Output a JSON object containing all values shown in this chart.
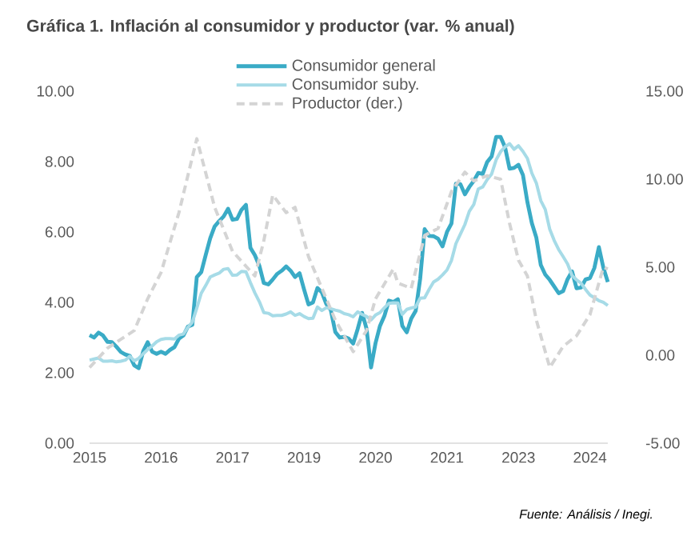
{
  "chart_data": {
    "type": "line",
    "title": "Gráfica 1. Inflación al consumidor y productor (var. % anual)",
    "annotations": [
      "Fuente: Análisis / Inegi."
    ],
    "x": [
      "2015-01",
      "2015-02",
      "2015-03",
      "2015-04",
      "2015-05",
      "2015-06",
      "2015-07",
      "2015-08",
      "2015-09",
      "2015-10",
      "2015-11",
      "2015-12",
      "2016-01",
      "2016-02",
      "2016-03",
      "2016-04",
      "2016-05",
      "2016-06",
      "2016-07",
      "2016-08",
      "2016-09",
      "2016-10",
      "2016-11",
      "2016-12",
      "2017-01",
      "2017-02",
      "2017-03",
      "2017-04",
      "2017-05",
      "2017-06",
      "2017-07",
      "2017-08",
      "2017-09",
      "2017-10",
      "2017-11",
      "2017-12",
      "2018-01",
      "2018-02",
      "2018-03",
      "2018-04",
      "2018-05",
      "2018-06",
      "2018-07",
      "2018-08",
      "2018-09",
      "2018-10",
      "2018-11",
      "2018-12",
      "2019-01",
      "2019-02",
      "2019-03",
      "2019-04",
      "2019-05",
      "2019-06",
      "2019-07",
      "2019-08",
      "2019-09",
      "2019-10",
      "2019-11",
      "2019-12",
      "2020-01",
      "2020-02",
      "2020-03",
      "2020-04",
      "2020-05",
      "2020-06",
      "2020-07",
      "2020-08",
      "2020-09",
      "2020-10",
      "2020-11",
      "2020-12",
      "2021-01",
      "2021-02",
      "2021-03",
      "2021-04",
      "2021-05",
      "2021-06",
      "2021-07",
      "2021-08",
      "2021-09",
      "2021-10",
      "2021-11",
      "2021-12",
      "2022-01",
      "2022-02",
      "2022-03",
      "2022-04",
      "2022-05",
      "2022-06",
      "2022-07",
      "2022-08",
      "2022-09",
      "2022-10",
      "2022-11",
      "2022-12",
      "2023-01",
      "2023-02",
      "2023-03",
      "2023-04",
      "2023-05",
      "2023-06",
      "2023-07",
      "2023-08",
      "2023-09",
      "2023-10",
      "2023-11",
      "2023-12",
      "2024-01",
      "2024-02",
      "2024-03",
      "2024-04",
      "2024-05",
      "2024-06",
      "2024-07",
      "2024-08",
      "2024-09"
    ],
    "series": [
      {
        "name": "Consumidor general",
        "color": "#3aabc6",
        "values": [
          3.07,
          3.0,
          3.14,
          3.06,
          2.88,
          2.87,
          2.74,
          2.59,
          2.52,
          2.48,
          2.21,
          2.13,
          2.61,
          2.87,
          2.6,
          2.54,
          2.6,
          2.54,
          2.65,
          2.73,
          2.97,
          3.06,
          3.31,
          3.36,
          4.72,
          4.86,
          5.35,
          5.82,
          6.16,
          6.31,
          6.44,
          6.66,
          6.35,
          6.37,
          6.63,
          6.77,
          5.55,
          5.34,
          5.04,
          4.55,
          4.51,
          4.65,
          4.81,
          4.9,
          5.02,
          4.9,
          4.72,
          4.83,
          4.37,
          3.94,
          4.0,
          4.41,
          4.28,
          3.95,
          3.78,
          3.16,
          3.0,
          3.02,
          2.97,
          2.83,
          3.24,
          3.7,
          3.25,
          2.15,
          2.84,
          3.33,
          3.62,
          4.05,
          4.01,
          4.09,
          3.33,
          3.15,
          3.54,
          3.76,
          4.67,
          6.08,
          5.89,
          5.88,
          5.81,
          5.59,
          6.0,
          6.24,
          7.37,
          7.36,
          7.07,
          7.28,
          7.45,
          7.68,
          7.65,
          7.99,
          8.15,
          8.7,
          8.7,
          8.41,
          7.8,
          7.82,
          7.91,
          7.62,
          6.85,
          6.25,
          5.84,
          5.06,
          4.79,
          4.64,
          4.45,
          4.26,
          4.32,
          4.66,
          4.88,
          4.4,
          4.42,
          4.65,
          4.69,
          4.98,
          5.57,
          4.99,
          4.58
        ]
      },
      {
        "name": "Consumidor suby.",
        "color": "#a6dbe7",
        "values": [
          2.36,
          2.39,
          2.42,
          2.33,
          2.33,
          2.34,
          2.31,
          2.33,
          2.36,
          2.47,
          2.34,
          2.41,
          2.54,
          2.66,
          2.76,
          2.88,
          2.95,
          2.97,
          2.97,
          2.96,
          3.07,
          3.1,
          3.29,
          3.44,
          3.84,
          4.26,
          4.48,
          4.72,
          4.78,
          4.83,
          4.94,
          4.96,
          4.77,
          4.78,
          4.88,
          4.87,
          4.56,
          4.27,
          4.02,
          3.71,
          3.69,
          3.62,
          3.63,
          3.63,
          3.67,
          3.73,
          3.63,
          3.68,
          3.6,
          3.54,
          3.55,
          3.87,
          3.77,
          3.85,
          3.82,
          3.78,
          3.75,
          3.68,
          3.65,
          3.59,
          3.73,
          3.66,
          3.6,
          3.5,
          3.64,
          3.71,
          3.85,
          3.97,
          3.99,
          3.98,
          3.66,
          3.8,
          3.84,
          3.87,
          4.12,
          4.13,
          4.37,
          4.58,
          4.66,
          4.78,
          4.92,
          5.19,
          5.67,
          5.94,
          6.21,
          6.59,
          6.78,
          7.22,
          7.28,
          7.49,
          7.65,
          8.05,
          8.28,
          8.42,
          8.51,
          8.35,
          8.45,
          8.29,
          8.09,
          7.67,
          7.39,
          6.89,
          6.64,
          6.08,
          5.76,
          5.5,
          5.3,
          5.09,
          4.76,
          4.64,
          4.55,
          4.37,
          4.21,
          4.13,
          4.05,
          4.0,
          3.91
        ]
      },
      {
        "name": "Productor (der.)",
        "color": "#d4d4d4",
        "line_style": "dashed",
        "axis": "y2",
        "x": [
          "2015-01",
          "2015-05",
          "2015-11",
          "2016-02",
          "2016-05",
          "2016-09",
          "2017-01",
          "2017-05",
          "2017-09",
          "2018-02",
          "2018-04",
          "2018-06",
          "2018-09",
          "2018-11",
          "2019-02",
          "2019-05",
          "2019-08",
          "2019-12",
          "2020-03",
          "2020-05",
          "2020-09",
          "2020-10",
          "2021-01",
          "2021-04",
          "2021-07",
          "2021-10",
          "2022-01",
          "2022-03",
          "2022-06",
          "2022-09",
          "2022-11",
          "2023-01",
          "2023-03",
          "2023-05",
          "2023-08",
          "2023-11",
          "2024-02",
          "2024-05",
          "2024-08",
          "2024-09"
        ],
        "values": [
          -0.7,
          0.4,
          1.4,
          3.2,
          4.7,
          8.1,
          12.3,
          8.4,
          5.9,
          4.5,
          6.5,
          9.1,
          8.1,
          8.4,
          5.6,
          3.8,
          2.0,
          0.2,
          1.4,
          3.2,
          4.9,
          4.1,
          3.8,
          6.8,
          7.2,
          9.3,
          10.4,
          9.9,
          10.2,
          10.0,
          7.5,
          5.4,
          4.5,
          2.0,
          -0.7,
          0.5,
          1.1,
          2.3,
          5.0,
          4.9
        ]
      }
    ],
    "xlim": [
      "2015-01",
      "2024-09"
    ],
    "xticks": [
      {
        "value": "2015-01",
        "label": "2015"
      },
      {
        "value": "2016-05",
        "label": "2016"
      },
      {
        "value": "2017-09",
        "label": "2017"
      },
      {
        "value": "2019-01",
        "label": "2019"
      },
      {
        "value": "2020-05",
        "label": "2020"
      },
      {
        "value": "2021-09",
        "label": "2021"
      },
      {
        "value": "2023-01",
        "label": "2023"
      },
      {
        "value": "2024-05",
        "label": "2024"
      }
    ],
    "ylim": [
      0,
      10
    ],
    "yticks": [
      {
        "value": 0,
        "label": "0.00"
      },
      {
        "value": 2,
        "label": "2.00"
      },
      {
        "value": 4,
        "label": "4.00"
      },
      {
        "value": 6,
        "label": "6.00"
      },
      {
        "value": 8,
        "label": "8.00"
      },
      {
        "value": 10,
        "label": "10.00"
      }
    ],
    "y2lim": [
      -5,
      15
    ],
    "y2ticks": [
      {
        "value": -5,
        "label": "-5.00"
      },
      {
        "value": 0,
        "label": "0.00"
      },
      {
        "value": 5,
        "label": "5.00"
      },
      {
        "value": 10,
        "label": "10.00"
      },
      {
        "value": 15,
        "label": "15.00"
      }
    ],
    "legend": "top",
    "grid": false
  }
}
